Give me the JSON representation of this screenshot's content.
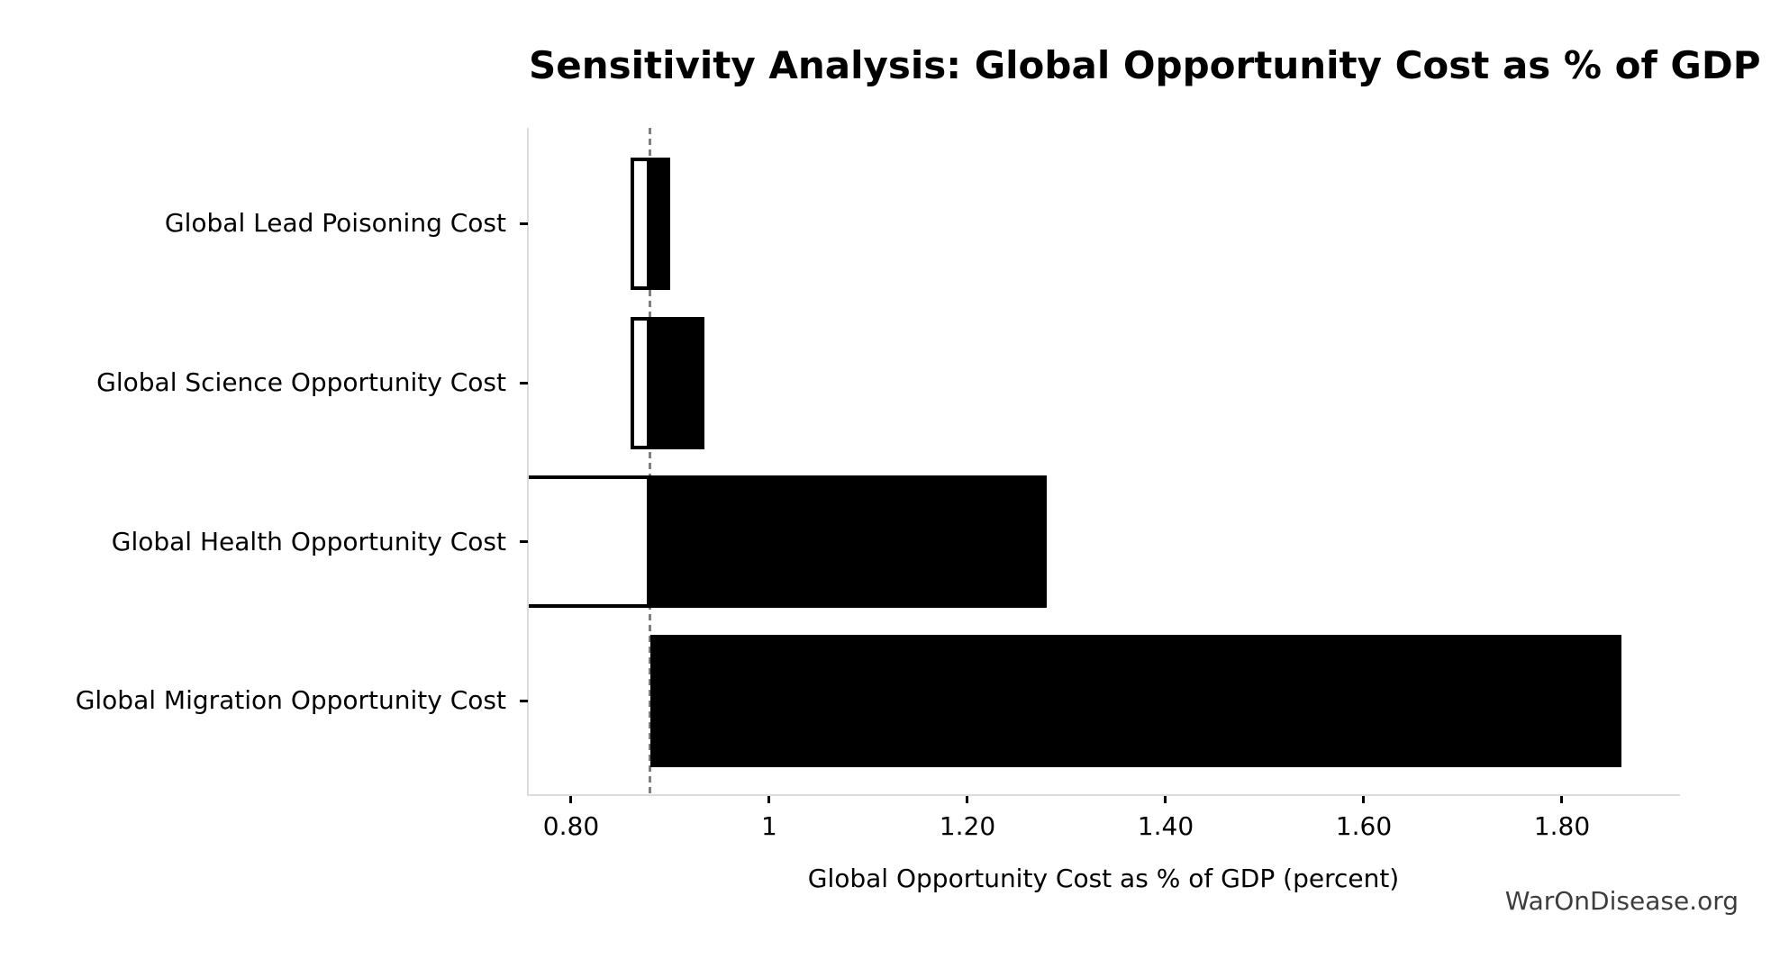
{
  "chart_data": {
    "type": "bar",
    "orientation": "horizontal",
    "title": "Sensitivity Analysis: Global Opportunity Cost as % of GDP",
    "xlabel": "Global Opportunity Cost as % of GDP (percent)",
    "categories": [
      "Global Lead Poisoning Cost",
      "Global Science Opportunity Cost",
      "Global Health Opportunity Cost",
      "Global Migration Opportunity Cost"
    ],
    "baseline": 0.88,
    "rows": [
      {
        "label": "Global Lead Poisoning Cost",
        "low": 0.86,
        "high": 0.9,
        "low_clipped": false
      },
      {
        "label": "Global Science Opportunity Cost",
        "low": 0.86,
        "high": 0.935,
        "low_clipped": false
      },
      {
        "label": "Global Health Opportunity Cost",
        "low": 0.757,
        "high": 1.28,
        "low_clipped": true
      },
      {
        "label": "Global Migration Opportunity Cost",
        "low": 0.88,
        "high": 1.86,
        "low_clipped": false
      }
    ],
    "xlim": [
      0.7573,
      1.9173
    ],
    "xticks": [
      {
        "value": 0.8,
        "label": "0.80"
      },
      {
        "value": 1.0,
        "label": "1"
      },
      {
        "value": 1.2,
        "label": "1.20"
      },
      {
        "value": 1.4,
        "label": "1.40"
      },
      {
        "value": 1.6,
        "label": "1.60"
      },
      {
        "value": 1.8,
        "label": "1.80"
      }
    ],
    "grid": false,
    "legend": null,
    "baseline_line": {
      "style": "dashed",
      "color": "#7f7f7f"
    },
    "bar_color": "#000000",
    "low_box_style": {
      "fill": "#ffffff",
      "border": "#000000"
    }
  },
  "watermark": "WarOnDisease.org",
  "colors": {
    "background": "#ffffff",
    "spine": "#dcdcdc",
    "tick": "#000000",
    "text": "#000000",
    "watermark_text": "#3d3d3d"
  }
}
